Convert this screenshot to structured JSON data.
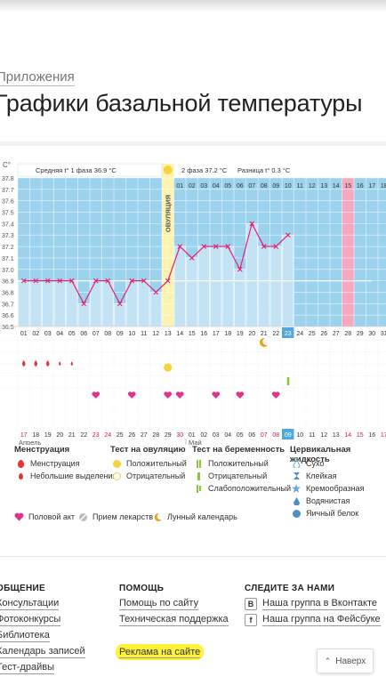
{
  "breadcrumb": "Приложения",
  "page_title": "Графики базальной температуры",
  "chart": {
    "unit": "С°",
    "phase1_label": "Средняя t° 1 фаза",
    "phase1_value": "36.9 °С",
    "phase2_label": "2 фаза",
    "phase2_value": "37.2 °С",
    "diff_label": "Разница t°",
    "diff_value": "0.3 °С",
    "ovulation_label": "ОВУЛЯЦИЯ",
    "month_start": "Апрель",
    "month_next": "Май",
    "colors": {
      "phase_bg": "#9bd2ee",
      "bar": "#c3e3f4",
      "line": "#e61e73",
      "ovulation": "#fff3b0",
      "marker": "#f7a8be"
    }
  },
  "chart_data": {
    "type": "line",
    "y_ticks": [
      "37.8",
      "37.7",
      "37.6",
      "37.5",
      "37.4",
      "37.3",
      "37.2",
      "37.1",
      "37.0",
      "36.9",
      "36.8",
      "36.7",
      "36.6",
      "36.5"
    ],
    "ylim": [
      36.5,
      37.8
    ],
    "cycle_days": [
      "01",
      "02",
      "03",
      "04",
      "05",
      "06",
      "07",
      "08",
      "09",
      "10",
      "11",
      "12",
      "13",
      "14",
      "15",
      "16",
      "17",
      "18",
      "19",
      "20",
      "21",
      "22",
      "23",
      "24",
      "25",
      "26",
      "27",
      "28",
      "29",
      "30",
      "31"
    ],
    "dates": [
      "17",
      "18",
      "19",
      "20",
      "21",
      "22",
      "23",
      "24",
      "25",
      "26",
      "27",
      "28",
      "29",
      "30",
      "01",
      "02",
      "03",
      "04",
      "05",
      "06",
      "07",
      "08",
      "09",
      "10",
      "11",
      "12",
      "13",
      "14",
      "15",
      "16",
      "17"
    ],
    "temperatures": [
      36.9,
      36.9,
      36.9,
      36.9,
      36.9,
      36.7,
      36.9,
      36.9,
      36.7,
      36.9,
      36.9,
      36.8,
      36.9,
      37.2,
      37.1,
      37.2,
      37.2,
      37.2,
      37.0,
      37.4,
      37.2,
      37.2,
      37.3
    ],
    "temperature_labels": [
      "36.9",
      "36.9",
      "36.9",
      "36.9",
      "36.9",
      "36.7",
      "36.9",
      "36.9",
      "36.7",
      "36.9",
      "36.9",
      "36.8",
      "36.9",
      "37.2",
      "37.1",
      "37.2",
      "37.2",
      "37.2",
      "37.0",
      "37.4",
      "37.2",
      "37.2",
      "37.3"
    ],
    "cover_line": 36.9,
    "top_numbers": [
      "01",
      "02",
      "03",
      "04",
      "05",
      "06",
      "07",
      "08",
      "09",
      "10",
      "11",
      "12",
      "13",
      "14",
      "15",
      "16",
      "17",
      "18"
    ],
    "ovulation_day": 13,
    "highlight_day": 23,
    "marker_day": 28,
    "menstruation": [
      {
        "day": 1,
        "size": "big"
      },
      {
        "day": 2,
        "size": "big"
      },
      {
        "day": 3,
        "size": "big"
      },
      {
        "day": 4,
        "size": "small"
      },
      {
        "day": 5,
        "size": "small"
      }
    ],
    "positive_ovulation_test_day": 13,
    "pregnancy_test_day": 23,
    "intercourse_days": [
      7,
      10,
      13,
      14,
      17,
      19,
      22
    ],
    "lunar_day": 21,
    "red_dates": [
      "17",
      "23",
      "24",
      "30",
      "07",
      "08",
      "14",
      "15"
    ]
  },
  "legend": {
    "menstruation": {
      "title": "Менструация",
      "items": [
        "Менструация",
        "Небольшие выделения"
      ]
    },
    "ovulation_test": {
      "title": "Тест на овуляцию",
      "items": [
        "Положительный",
        "Отрицательный"
      ]
    },
    "pregnancy_test": {
      "title": "Тест на беременность",
      "items": [
        "Положительный",
        "Отрицательный",
        "Слабоположительный"
      ]
    },
    "cervical": {
      "title": "Цервикальная жидкость",
      "items": [
        "Сухо",
        "Клейкая",
        "Кремообразная",
        "Водянистая",
        "Яичный белок"
      ]
    },
    "bottom": [
      "Половой акт",
      "Прием лекарств",
      "Лунный календарь"
    ]
  },
  "footer": {
    "col1": {
      "title": "ОБЩЕНИЕ",
      "links": [
        "Консультации",
        "Фотоконкурсы",
        "Библиотека",
        "Календарь записей",
        "Тест-драйвы"
      ]
    },
    "col2": {
      "title": "ПОМОЩЬ",
      "links": [
        "Помощь по сайту",
        "Техническая поддержка",
        "Реклама на сайте"
      ]
    },
    "col3": {
      "title": "СЛЕДИТЕ ЗА НАМИ",
      "links": [
        "Наша группа в Вконтакте",
        "Наша группа на Фейсбуке"
      ]
    },
    "back_label": "Наверх"
  }
}
